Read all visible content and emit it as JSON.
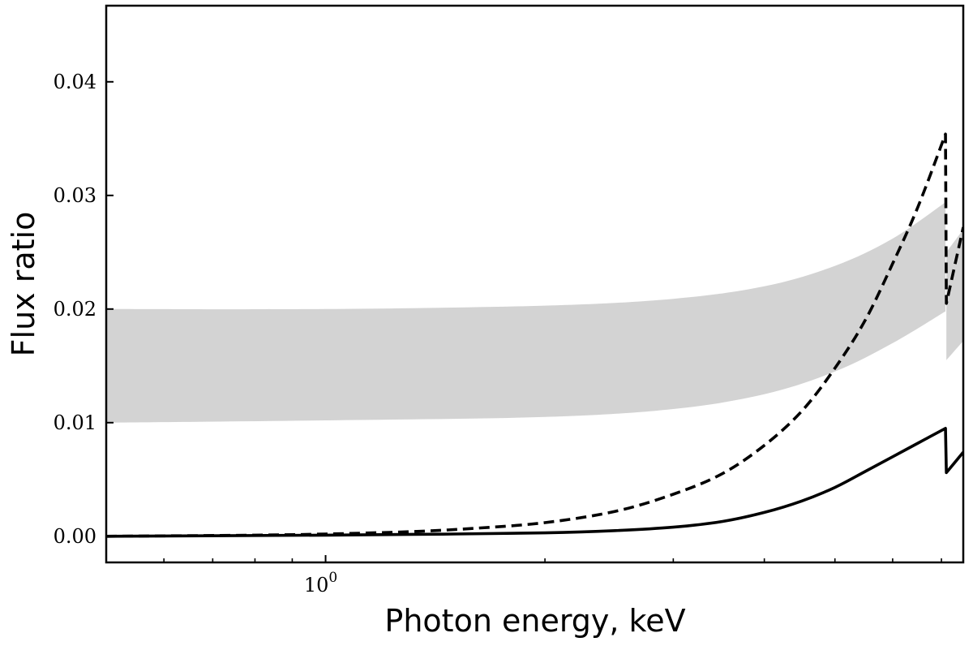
{
  "chart_data": {
    "type": "line",
    "title": "",
    "xlabel": "Photon energy, keV",
    "ylabel": "Flux ratio",
    "xscale": "log",
    "xlim": [
      0.5,
      7.5
    ],
    "ylim": [
      -0.0023,
      0.0467
    ],
    "y_ticks": [
      0.0,
      0.01,
      0.02,
      0.03,
      0.04
    ],
    "y_tick_labels": [
      "0.00",
      "0.01",
      "0.02",
      "0.03",
      "0.04"
    ],
    "x_major_ticks": [
      1
    ],
    "x_major_tick_labels": [
      {
        "base": "10",
        "exp": "0"
      }
    ],
    "x_minor_ticks": [
      0.6,
      0.7,
      0.8,
      0.9,
      2,
      3,
      4,
      5,
      6,
      7
    ],
    "edge_energy": 7.1,
    "band": {
      "name": "shaded range",
      "color": "#d3d3d3",
      "x": [
        0.5,
        1.0,
        2.0,
        3.0,
        4.0,
        5.0,
        6.0,
        7.09,
        7.11,
        7.5
      ],
      "lower": [
        0.01,
        0.0102,
        0.0105,
        0.0112,
        0.0125,
        0.0145,
        0.017,
        0.0198,
        0.0155,
        0.0172
      ],
      "upper": [
        0.02,
        0.02,
        0.0203,
        0.0209,
        0.022,
        0.0238,
        0.0262,
        0.0294,
        0.025,
        0.027
      ]
    },
    "series": [
      {
        "name": "dashed curve",
        "style": "dashed",
        "color": "#000000",
        "x": [
          0.5,
          0.8,
          1.0,
          1.3,
          1.6,
          2.0,
          2.5,
          3.0,
          3.5,
          4.0,
          4.5,
          5.0,
          5.5,
          6.0,
          6.5,
          7.09,
          7.11,
          7.5
        ],
        "values": [
          0.0,
          0.0001,
          0.0002,
          0.0004,
          0.0007,
          0.0012,
          0.0022,
          0.0037,
          0.0055,
          0.008,
          0.011,
          0.0148,
          0.019,
          0.024,
          0.029,
          0.0354,
          0.0205,
          0.0272
        ]
      },
      {
        "name": "solid curve",
        "style": "solid",
        "color": "#000000",
        "x": [
          0.5,
          1.0,
          1.5,
          2.0,
          2.5,
          3.0,
          3.5,
          4.0,
          4.5,
          5.0,
          5.5,
          6.0,
          6.5,
          7.09,
          7.11,
          7.5
        ],
        "values": [
          0.0,
          0.0001,
          0.0002,
          0.0003,
          0.0005,
          0.0008,
          0.0013,
          0.0021,
          0.0031,
          0.0043,
          0.0057,
          0.007,
          0.0082,
          0.0095,
          0.0056,
          0.0074
        ]
      }
    ]
  }
}
